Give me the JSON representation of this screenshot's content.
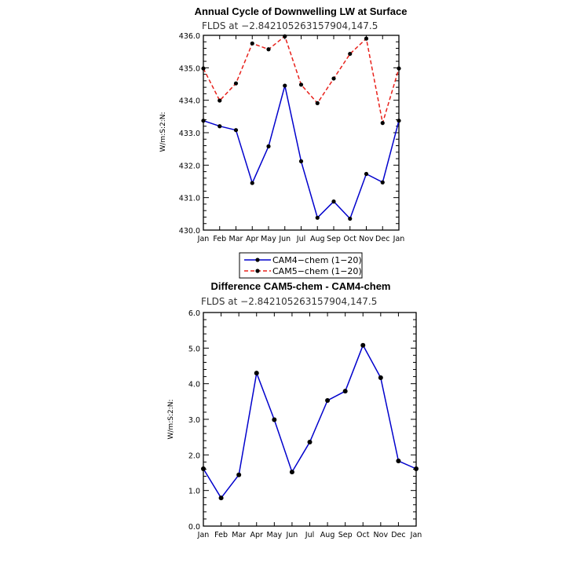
{
  "chart_data": [
    {
      "type": "line",
      "title": "Annual Cycle of Downwelling LW at Surface",
      "subtitle": "FLDS at −2.842105263157904,147.5",
      "ylabel": "W/m:S:2:N:",
      "xlabel": "",
      "categories": [
        "Jan",
        "Feb",
        "Mar",
        "Apr",
        "May",
        "Jun",
        "Jul",
        "Aug",
        "Sep",
        "Oct",
        "Nov",
        "Dec",
        "Jan"
      ],
      "ylim": [
        430.0,
        436.0
      ],
      "yticks": [
        "430.0",
        "431.0",
        "432.0",
        "433.0",
        "434.0",
        "435.0",
        "436.0"
      ],
      "ytick_values": [
        430,
        431,
        432,
        433,
        434,
        435,
        436
      ],
      "series": [
        {
          "name": "CAM4−chem (1−20)",
          "color": "#0000cc",
          "dash": "solid",
          "values": [
            433.37,
            433.2,
            433.08,
            431.45,
            432.58,
            434.45,
            432.12,
            430.38,
            430.88,
            430.35,
            431.73,
            431.47,
            433.37
          ]
        },
        {
          "name": "CAM5−chem (1−20)",
          "color": "#e8201a",
          "dash": "dashed",
          "values": [
            434.98,
            433.99,
            434.52,
            435.75,
            435.57,
            435.97,
            434.48,
            433.91,
            434.67,
            435.43,
            435.9,
            433.3,
            434.98
          ]
        }
      ]
    },
    {
      "type": "line",
      "title": "Difference CAM5-chem - CAM4-chem",
      "subtitle": "FLDS at −2.842105263157904,147.5",
      "ylabel": "W/m:S:2:N:",
      "xlabel": "",
      "categories": [
        "Jan",
        "Feb",
        "Mar",
        "Apr",
        "May",
        "Jun",
        "Jul",
        "Aug",
        "Sep",
        "Oct",
        "Nov",
        "Dec",
        "Jan"
      ],
      "ylim": [
        0.0,
        6.0
      ],
      "yticks": [
        "0.0",
        "1.0",
        "2.0",
        "3.0",
        "4.0",
        "5.0",
        "6.0"
      ],
      "ytick_values": [
        0,
        1,
        2,
        3,
        4,
        5,
        6
      ],
      "series": [
        {
          "color": "#0000cc",
          "dash": "solid",
          "values": [
            1.61,
            0.79,
            1.44,
            4.3,
            2.99,
            1.52,
            2.36,
            3.53,
            3.79,
            5.08,
            4.17,
            1.83,
            1.61
          ]
        }
      ]
    }
  ]
}
